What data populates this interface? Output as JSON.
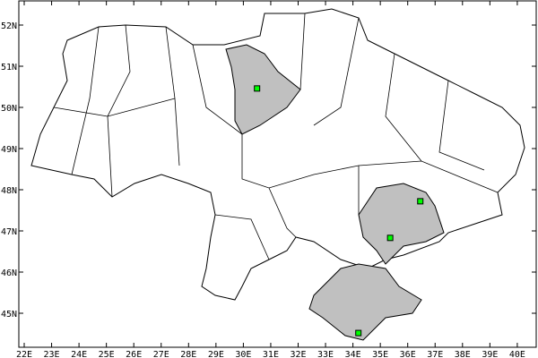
{
  "map": {
    "lon_range": [
      22,
      40
    ],
    "lat_range": [
      52,
      45
    ],
    "x_ticks": [
      "22E",
      "23E",
      "24E",
      "25E",
      "26E",
      "27E",
      "28E",
      "29E",
      "30E",
      "31E",
      "32E",
      "33E",
      "34E",
      "35E",
      "36E",
      "37E",
      "38E",
      "39E",
      "40E"
    ],
    "y_ticks": [
      "52N",
      "51N",
      "50N",
      "49N",
      "48N",
      "47N",
      "46N",
      "45N"
    ],
    "colors": {
      "land": "#ffffff",
      "highlighted_region": "#c0c0c0",
      "border": "#000000",
      "marker": "#00ff00"
    },
    "highlighted_regions": [
      "Kyiv oblast",
      "Zaporizhzhia/Donetsk area",
      "Crimea"
    ],
    "markers": [
      {
        "lon": 30.5,
        "lat": 50.46
      },
      {
        "lon": 36.46,
        "lat": 47.72
      },
      {
        "lon": 35.36,
        "lat": 46.83
      },
      {
        "lon": 34.2,
        "lat": 44.52
      }
    ]
  }
}
